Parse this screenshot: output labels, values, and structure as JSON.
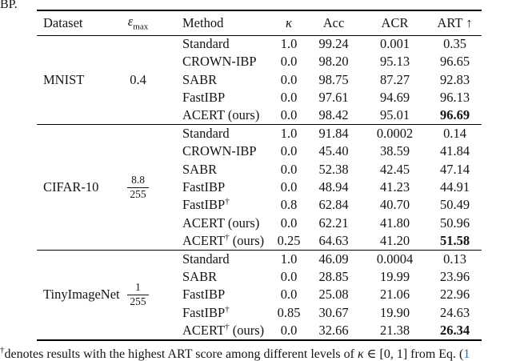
{
  "caption_fragment": "BP.",
  "table": {
    "headers": {
      "dataset": "Dataset",
      "eps_symbol": "ε",
      "eps_sub": "max",
      "method": "Method",
      "kappa": "κ",
      "acc": "Acc",
      "acr": "ACR",
      "art": "ART ↑"
    },
    "sections": [
      {
        "dataset": "MNIST",
        "eps": {
          "type": "plain",
          "value": "0.4"
        },
        "rows": [
          {
            "method": "Standard",
            "dagger": "",
            "suffix": "",
            "kappa": "1.0",
            "acc": "99.24",
            "acr": "0.001",
            "art": "0.35",
            "art_bold": false
          },
          {
            "method": "CROWN-IBP",
            "dagger": "",
            "suffix": "",
            "kappa": "0.0",
            "acc": "98.20",
            "acr": "95.13",
            "art": "96.65",
            "art_bold": false
          },
          {
            "method": "SABR",
            "dagger": "",
            "suffix": "",
            "kappa": "0.0",
            "acc": "98.75",
            "acr": "87.27",
            "art": "92.83",
            "art_bold": false
          },
          {
            "method": "FastIBP",
            "dagger": "",
            "suffix": "",
            "kappa": "0.0",
            "acc": "97.61",
            "acr": "94.69",
            "art": "96.13",
            "art_bold": false
          },
          {
            "method": "ACERT",
            "dagger": "",
            "suffix": " (ours)",
            "kappa": "0.0",
            "acc": "98.42",
            "acr": "95.01",
            "art": "96.69",
            "art_bold": true
          }
        ]
      },
      {
        "dataset": "CIFAR-10",
        "eps": {
          "type": "fraction",
          "num": "8.8",
          "den": "255"
        },
        "rows": [
          {
            "method": "Standard",
            "dagger": "",
            "suffix": "",
            "kappa": "1.0",
            "acc": "91.84",
            "acr": "0.0002",
            "art": "0.14",
            "art_bold": false
          },
          {
            "method": "CROWN-IBP",
            "dagger": "",
            "suffix": "",
            "kappa": "0.0",
            "acc": "45.40",
            "acr": "38.59",
            "art": "41.84",
            "art_bold": false
          },
          {
            "method": "SABR",
            "dagger": "",
            "suffix": "",
            "kappa": "0.0",
            "acc": "52.38",
            "acr": "42.45",
            "art": "47.14",
            "art_bold": false
          },
          {
            "method": "FastIBP",
            "dagger": "",
            "suffix": "",
            "kappa": "0.0",
            "acc": "48.94",
            "acr": "41.23",
            "art": "44.91",
            "art_bold": false
          },
          {
            "method": "FastIBP",
            "dagger": "†",
            "suffix": "",
            "kappa": "0.8",
            "acc": "62.84",
            "acr": "40.70",
            "art": "50.49",
            "art_bold": false
          },
          {
            "method": "ACERT",
            "dagger": "",
            "suffix": " (ours)",
            "kappa": "0.0",
            "acc": "62.21",
            "acr": "41.80",
            "art": "50.96",
            "art_bold": false
          },
          {
            "method": "ACERT",
            "dagger": "†",
            "suffix": " (ours)",
            "kappa": "0.25",
            "acc": "64.63",
            "acr": "41.20",
            "art": "51.58",
            "art_bold": true
          }
        ]
      },
      {
        "dataset": "TinyImageNet",
        "eps": {
          "type": "fraction",
          "num": "1",
          "den": "255"
        },
        "rows": [
          {
            "method": "Standard",
            "dagger": "",
            "suffix": "",
            "kappa": "1.0",
            "acc": "46.09",
            "acr": "0.0004",
            "art": "0.13",
            "art_bold": false
          },
          {
            "method": "SABR",
            "dagger": "",
            "suffix": "",
            "kappa": "0.0",
            "acc": "28.85",
            "acr": "19.99",
            "art": "23.96",
            "art_bold": false
          },
          {
            "method": "FastIBP",
            "dagger": "",
            "suffix": "",
            "kappa": "0.0",
            "acc": "25.08",
            "acr": "21.06",
            "art": "22.96",
            "art_bold": false
          },
          {
            "method": "FastIBP",
            "dagger": "†",
            "suffix": "",
            "kappa": "0.85",
            "acc": "30.67",
            "acr": "19.90",
            "art": "24.63",
            "art_bold": false
          },
          {
            "method": "ACERT",
            "dagger": "†",
            "suffix": " (ours)",
            "kappa": "0.0",
            "acc": "32.66",
            "acr": "21.38",
            "art": "26.34",
            "art_bold": true
          }
        ]
      }
    ]
  },
  "footnote": {
    "dagger": "†",
    "text": "denotes results with the highest ART score among different levels of ",
    "kappa": "κ",
    "range": " ∈ [0, 1]",
    "text2": " from Eq. (",
    "eq_link": "1"
  },
  "colors": {
    "text": "#141414",
    "link": "#2b6abf",
    "rule": "#000000"
  }
}
